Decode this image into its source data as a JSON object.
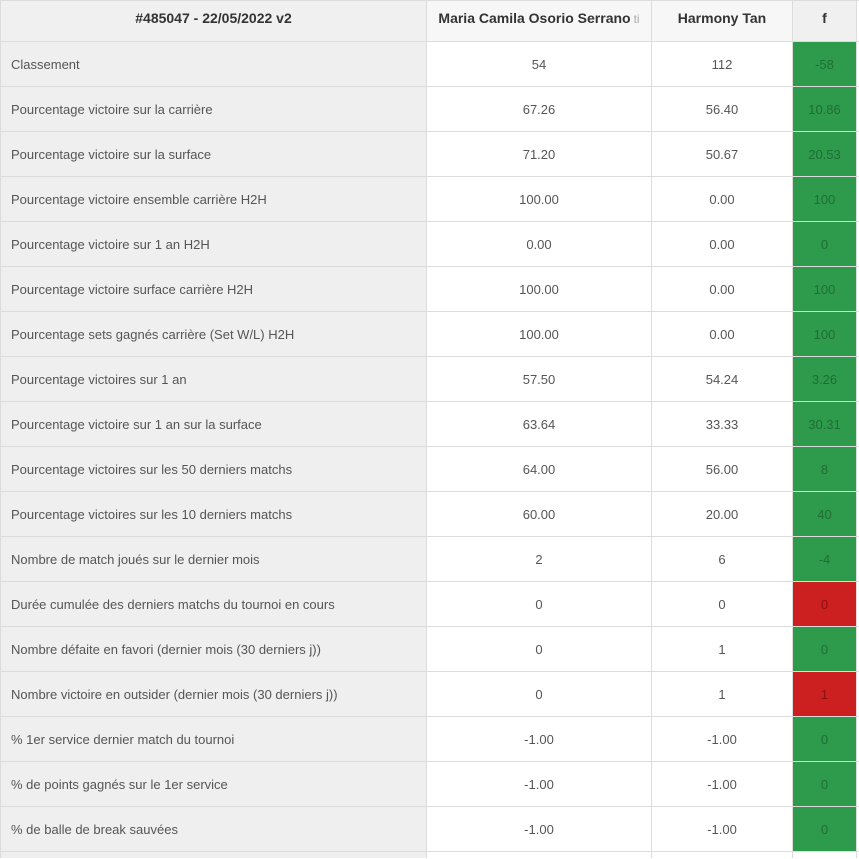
{
  "header": {
    "match_id": "#485047 - 22/05/2022 v2",
    "player1": "Maria Camila Osorio Serrano",
    "player1_hint": "ti",
    "player2": "Harmony Tan",
    "f_label": "f"
  },
  "rows": [
    {
      "label": "Classement",
      "p1": "54",
      "p2": "112",
      "f": "-58",
      "f_color": "green"
    },
    {
      "label": "Pourcentage victoire sur la carrière",
      "p1": "67.26",
      "p2": "56.40",
      "f": "10.86",
      "f_color": "green"
    },
    {
      "label": "Pourcentage victoire sur la surface",
      "p1": "71.20",
      "p2": "50.67",
      "f": "20.53",
      "f_color": "green"
    },
    {
      "label": "Pourcentage victoire ensemble carrière H2H",
      "p1": "100.00",
      "p2": "0.00",
      "f": "100",
      "f_color": "green"
    },
    {
      "label": "Pourcentage victoire sur 1 an H2H",
      "p1": "0.00",
      "p2": "0.00",
      "f": "0",
      "f_color": "green"
    },
    {
      "label": "Pourcentage victoire surface carrière H2H",
      "p1": "100.00",
      "p2": "0.00",
      "f": "100",
      "f_color": "green"
    },
    {
      "label": "Pourcentage sets gagnés carrière (Set W/L) H2H",
      "p1": "100.00",
      "p2": "0.00",
      "f": "100",
      "f_color": "green"
    },
    {
      "label": "Pourcentage victoires sur 1 an",
      "p1": "57.50",
      "p2": "54.24",
      "f": "3.26",
      "f_color": "green"
    },
    {
      "label": "Pourcentage victoire sur 1 an sur la surface",
      "p1": "63.64",
      "p2": "33.33",
      "f": "30.31",
      "f_color": "green"
    },
    {
      "label": "Pourcentage victoires sur les 50 derniers matchs",
      "p1": "64.00",
      "p2": "56.00",
      "f": "8",
      "f_color": "green"
    },
    {
      "label": "Pourcentage victoires sur les 10 derniers matchs",
      "p1": "60.00",
      "p2": "20.00",
      "f": "40",
      "f_color": "green"
    },
    {
      "label": "Nombre de match joués sur le dernier mois",
      "p1": "2",
      "p2": "6",
      "f": "-4",
      "f_color": "green"
    },
    {
      "label": "Durée cumulée des derniers matchs du tournoi en cours",
      "p1": "0",
      "p2": "0",
      "f": "0",
      "f_color": "red"
    },
    {
      "label": "Nombre défaite en favori (dernier mois (30 derniers j))",
      "p1": "0",
      "p2": "1",
      "f": "0",
      "f_color": "green"
    },
    {
      "label": "Nombre victoire en outsider (dernier mois (30 derniers j))",
      "p1": "0",
      "p2": "1",
      "f": "1",
      "f_color": "red"
    },
    {
      "label": "% 1er service dernier match du tournoi",
      "p1": "-1.00",
      "p2": "-1.00",
      "f": "0",
      "f_color": "green"
    },
    {
      "label": "% de points gagnés sur le 1er service",
      "p1": "-1.00",
      "p2": "-1.00",
      "f": "0",
      "f_color": "green"
    },
    {
      "label": "% de balle de break sauvées",
      "p1": "-1.00",
      "p2": "-1.00",
      "f": "0",
      "f_color": "green"
    }
  ]
}
